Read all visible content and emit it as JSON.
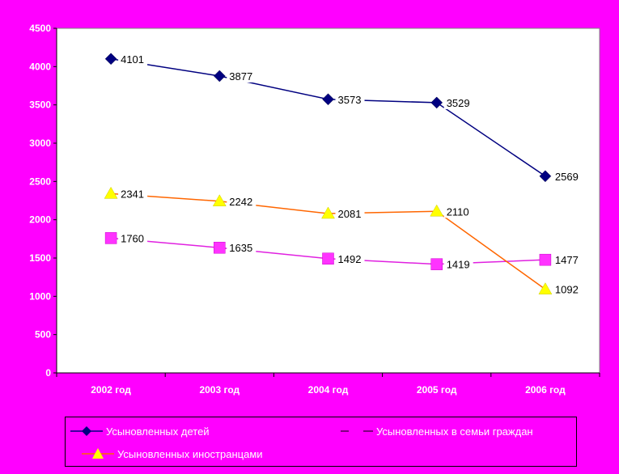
{
  "chart_data": {
    "type": "line",
    "title": "",
    "xlabel": "",
    "ylabel": "",
    "categories": [
      "2002 год",
      "2003 год",
      "2004 год",
      "2005 год",
      "2006 год"
    ],
    "ylim": [
      0,
      4500
    ],
    "yticks": [
      0,
      500,
      1000,
      1500,
      2000,
      2500,
      3000,
      3500,
      4000,
      4500
    ],
    "grid": false,
    "legend_position": "bottom",
    "series": [
      {
        "name": "Усыновленных детей",
        "values": [
          4101,
          3877,
          3573,
          3529,
          2569
        ],
        "color": "#000080",
        "marker": "diamond",
        "marker_color": "#000080"
      },
      {
        "name": "Усыновленных в семьи граждан",
        "values": [
          1760,
          1635,
          1492,
          1419,
          1477
        ],
        "color": "#e020e0",
        "marker": "square",
        "marker_color": "#ff33ff"
      },
      {
        "name": "Усыновленных иностранцами",
        "values": [
          2341,
          2242,
          2081,
          2110,
          1092
        ],
        "color": "#ff6600",
        "marker": "triangle",
        "marker_color": "#ffff00"
      }
    ]
  },
  "colors": {
    "page_background": "#ff00ff",
    "plot_background": "#ffffff",
    "axis_label_color": "#ffffff",
    "data_label_color": "#000000"
  }
}
